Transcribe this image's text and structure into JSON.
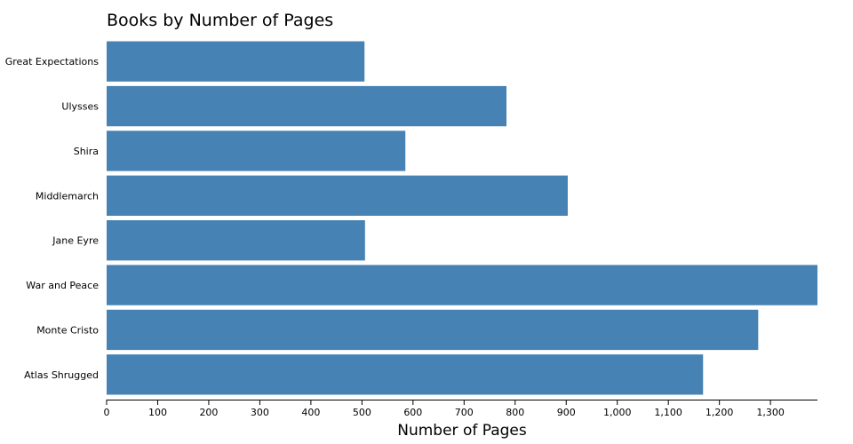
{
  "chart_data": {
    "type": "bar",
    "orientation": "horizontal",
    "title": "Books by Number of Pages",
    "x_label": "Number of Pages",
    "categories": [
      "Great Expectations",
      "Ulysses",
      "Shira",
      "Middlemarch",
      "Jane Eyre",
      "War and Peace",
      "Monte Cristo",
      "Atlas Shrugged"
    ],
    "values": [
      505,
      783,
      585,
      903,
      506,
      1392,
      1276,
      1168
    ],
    "color": "#4682b4",
    "xlim": [
      0,
      1392
    ],
    "xticks": [
      0,
      100,
      200,
      300,
      400,
      500,
      600,
      700,
      800,
      900,
      {
        "value": 1000,
        "label": "1,000"
      },
      {
        "value": 1100,
        "label": "1,100"
      },
      {
        "value": 1200,
        "label": "1,200"
      },
      {
        "value": 1300,
        "label": "1,300"
      }
    ]
  }
}
